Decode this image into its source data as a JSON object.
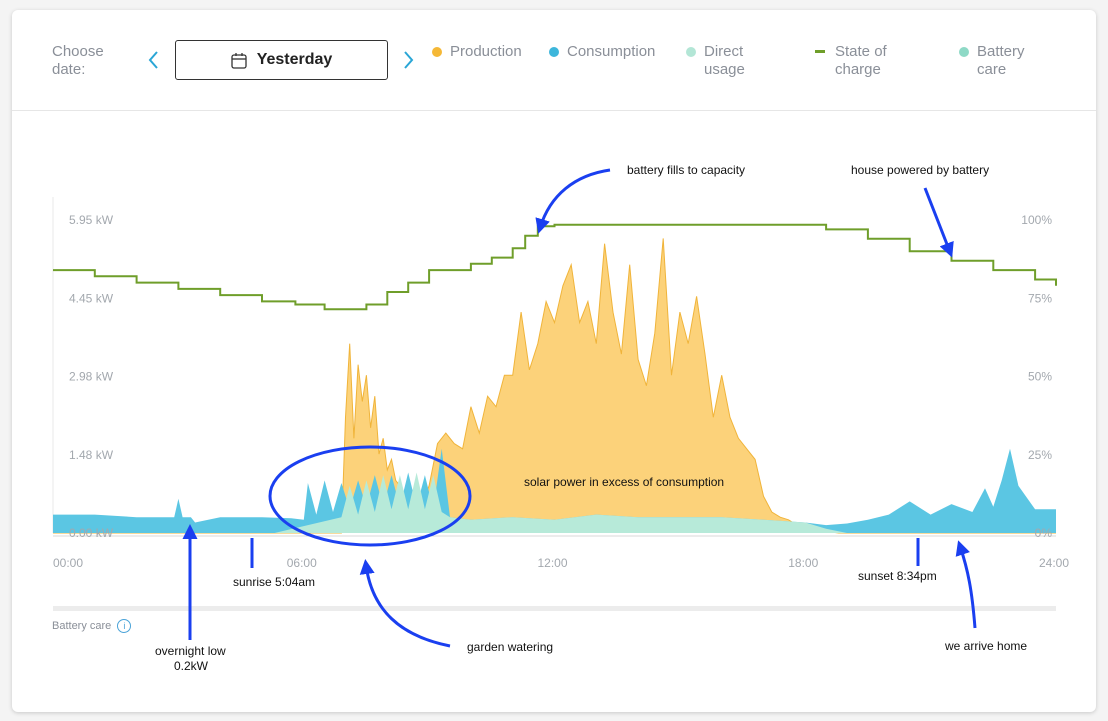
{
  "toolbar": {
    "choose_label": "Choose\ndate:",
    "date_value": "Yesterday",
    "legend": [
      {
        "label": "Production",
        "color": "#f5b836",
        "kind": "dot"
      },
      {
        "label": "Consumption",
        "color": "#3db6db",
        "kind": "dot"
      },
      {
        "label": "Direct\nusage",
        "color": "#b3e6d6",
        "kind": "dot"
      },
      {
        "label": "State of\ncharge",
        "color": "#6f9e2a",
        "kind": "line"
      },
      {
        "label": "Battery\ncare",
        "color": "#8ed9c6",
        "kind": "dot"
      }
    ]
  },
  "battery_care": {
    "label": "Battery care"
  },
  "annotations": {
    "fills": "battery fills to capacity",
    "house": "house powered by battery",
    "solar": "solar power in excess of consumption",
    "sunrise": "sunrise 5:04am",
    "sunset": "sunset 8:34pm",
    "overnight_1": "overnight low",
    "overnight_2": "0.2kW",
    "garden": "garden watering",
    "home": "we arrive home"
  },
  "chart_data": {
    "type": "area",
    "x_ticks": [
      "00:00",
      "06:00",
      "12:00",
      "18:00",
      "24:00"
    ],
    "y_ticks_left": [
      "0.00 kW",
      "1.48 kW",
      "2.98 kW",
      "4.45 kW",
      "5.95 kW"
    ],
    "y_ticks_right": [
      "0%",
      "25%",
      "50%",
      "75%",
      "100%"
    ],
    "ylim_kw": [
      0,
      5.95
    ],
    "ylim_soc": [
      0,
      100
    ],
    "xlim_hours": [
      0,
      24
    ],
    "colors": {
      "production": "#fcd27a",
      "production_line": "#f0b43a",
      "consumption": "#5bc6e3",
      "direct": "#b7ead9",
      "soc": "#6f9e2a"
    },
    "series": [
      {
        "name": "Production",
        "x": [
          0,
          6.9,
          7.0,
          7.1,
          7.2,
          7.3,
          7.4,
          7.5,
          7.6,
          7.7,
          7.8,
          7.9,
          8.0,
          8.1,
          8.2,
          8.3,
          8.4,
          8.6,
          8.8,
          9.0,
          9.2,
          9.4,
          9.6,
          9.8,
          10.0,
          10.2,
          10.4,
          10.6,
          10.8,
          11.0,
          11.2,
          11.4,
          11.6,
          11.8,
          12.0,
          12.2,
          12.4,
          12.6,
          12.8,
          13.0,
          13.2,
          13.4,
          13.6,
          13.8,
          14.0,
          14.2,
          14.4,
          14.6,
          14.8,
          15.0,
          15.2,
          15.4,
          15.6,
          15.8,
          16.0,
          16.2,
          16.4,
          16.6,
          16.8,
          17.0,
          17.2,
          17.4,
          17.6,
          17.8,
          18.0,
          18.2,
          18.4,
          18.6,
          18.8,
          24
        ],
        "values": [
          0,
          0,
          2.2,
          3.6,
          1.8,
          3.2,
          2.5,
          3.0,
          2.0,
          2.6,
          1.5,
          1.8,
          1.2,
          1.4,
          1.0,
          0.9,
          0.7,
          0.6,
          0.5,
          0.9,
          1.7,
          1.9,
          1.7,
          1.6,
          2.4,
          1.9,
          2.6,
          2.4,
          3.0,
          3.0,
          4.2,
          3.1,
          3.6,
          4.4,
          4.0,
          4.7,
          5.1,
          4.0,
          4.4,
          3.6,
          5.5,
          4.2,
          3.4,
          5.1,
          3.3,
          2.8,
          3.8,
          5.6,
          3.0,
          4.2,
          3.6,
          4.5,
          3.4,
          2.2,
          3.0,
          2.2,
          1.8,
          1.6,
          1.4,
          0.7,
          0.4,
          0.3,
          0.25,
          0.15,
          0.12,
          0.08,
          0.04,
          0.02,
          0.0,
          0
        ]
      },
      {
        "name": "Consumption",
        "x": [
          0,
          1,
          2,
          2.9,
          3.0,
          3.1,
          3.3,
          3.4,
          4,
          5,
          5.7,
          6.0,
          6.1,
          6.3,
          6.5,
          6.7,
          6.9,
          7.1,
          7.3,
          7.5,
          7.7,
          7.9,
          8.1,
          8.3,
          8.5,
          8.7,
          8.9,
          9.1,
          9.3,
          9.5,
          10,
          11,
          12,
          13,
          14,
          15,
          16,
          17,
          18,
          18.5,
          19,
          19.5,
          20,
          20.5,
          21,
          21.5,
          22,
          22.3,
          22.5,
          22.7,
          22.9,
          23.1,
          23.5,
          24
        ],
        "values": [
          0.35,
          0.35,
          0.3,
          0.3,
          0.65,
          0.3,
          0.3,
          0.2,
          0.3,
          0.3,
          0.28,
          0.25,
          0.95,
          0.35,
          1.0,
          0.4,
          0.95,
          0.45,
          1.0,
          0.5,
          1.1,
          0.5,
          1.1,
          0.5,
          1.15,
          0.5,
          1.1,
          0.45,
          1.6,
          0.3,
          0.25,
          0.3,
          0.25,
          0.35,
          0.3,
          0.3,
          0.3,
          0.25,
          0.2,
          0.15,
          0.18,
          0.25,
          0.35,
          0.6,
          0.35,
          0.55,
          0.4,
          0.85,
          0.5,
          1.0,
          1.6,
          0.9,
          0.45,
          0.45
        ]
      },
      {
        "name": "Direct usage",
        "x": [
          0,
          5.3,
          6.9,
          7.1,
          7.3,
          7.5,
          7.7,
          7.9,
          8.1,
          8.3,
          8.5,
          8.7,
          8.9,
          9.1,
          9.3,
          9.5,
          10,
          11,
          12,
          13,
          14,
          15,
          16,
          17,
          18,
          18.5,
          19,
          24
        ],
        "values": [
          0,
          0,
          0.3,
          0.9,
          0.35,
          1.0,
          0.4,
          1.1,
          0.45,
          1.1,
          0.45,
          1.15,
          0.45,
          1.1,
          0.4,
          0.3,
          0.25,
          0.3,
          0.25,
          0.35,
          0.3,
          0.3,
          0.3,
          0.25,
          0.2,
          0.08,
          0,
          0
        ]
      },
      {
        "name": "State of charge",
        "x": [
          0,
          1,
          2,
          3,
          4,
          5,
          5.8,
          6.5,
          7.0,
          7.5,
          8,
          8.5,
          9,
          10,
          10.5,
          11,
          11.3,
          11.6,
          12,
          14,
          16,
          17.6,
          18.5,
          19.5,
          20.5,
          21.5,
          22.5,
          23.5,
          24
        ],
        "values": [
          84,
          82,
          80,
          78,
          76,
          74,
          73,
          71.5,
          71.5,
          73,
          77,
          80,
          84,
          86,
          88,
          91,
          95,
          98,
          98.5,
          98.5,
          98.5,
          98.5,
          97,
          94,
          90,
          87,
          84,
          81,
          79
        ]
      }
    ]
  }
}
